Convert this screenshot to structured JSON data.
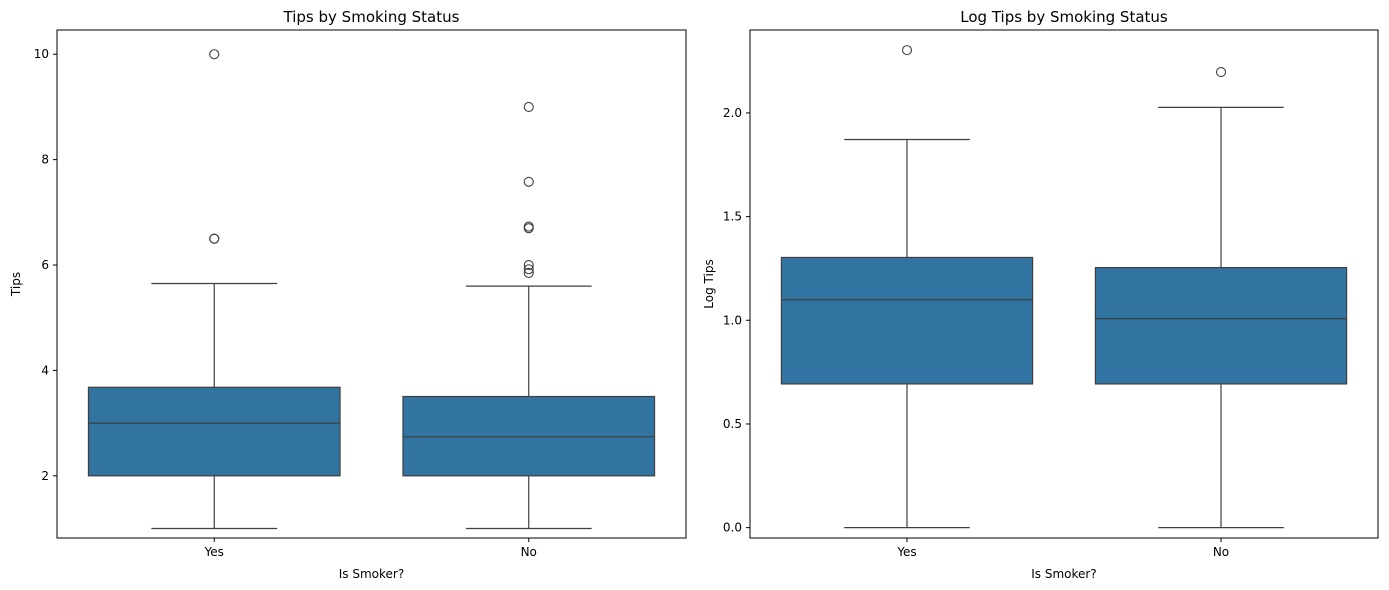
{
  "chart_data": [
    {
      "type": "box",
      "title": "Tips by Smoking Status",
      "xlabel": "Is Smoker?",
      "ylabel": "Tips",
      "categories": [
        "Yes",
        "No"
      ],
      "ylim": [
        0.82,
        10.46
      ],
      "yticks": [
        2,
        4,
        6,
        8,
        10
      ],
      "ytick_labels": [
        "2",
        "4",
        "6",
        "8",
        "10"
      ],
      "grid": false,
      "box_color": "#3274a1",
      "boxes": [
        {
          "category": "Yes",
          "whisker_low": 1.0,
          "q1": 2.0,
          "median": 3.0,
          "q3": 3.68,
          "whisker_high": 5.65,
          "outliers": [
            6.5,
            6.5,
            10.0
          ]
        },
        {
          "category": "No",
          "whisker_low": 1.0,
          "q1": 2.0,
          "median": 2.74,
          "q3": 3.505,
          "whisker_high": 5.6,
          "outliers": [
            5.85,
            5.92,
            6.0,
            6.7,
            6.73,
            7.58,
            9.0
          ]
        }
      ]
    },
    {
      "type": "box",
      "title": "Log Tips by Smoking Status",
      "xlabel": "Is Smoker?",
      "ylabel": "Log Tips",
      "categories": [
        "Yes",
        "No"
      ],
      "ylim": [
        -0.05,
        2.4
      ],
      "yticks": [
        0.0,
        0.5,
        1.0,
        1.5,
        2.0
      ],
      "ytick_labels": [
        "0.0",
        "0.5",
        "1.0",
        "1.5",
        "2.0"
      ],
      "grid": false,
      "box_color": "#3274a1",
      "boxes": [
        {
          "category": "Yes",
          "whisker_low": 0.0,
          "q1": 0.693,
          "median": 1.099,
          "q3": 1.303,
          "whisker_high": 1.872,
          "outliers": [
            2.303
          ]
        },
        {
          "category": "No",
          "whisker_low": 0.0,
          "q1": 0.693,
          "median": 1.008,
          "q3": 1.254,
          "whisker_high": 2.027,
          "outliers": [
            2.197
          ]
        }
      ]
    }
  ]
}
